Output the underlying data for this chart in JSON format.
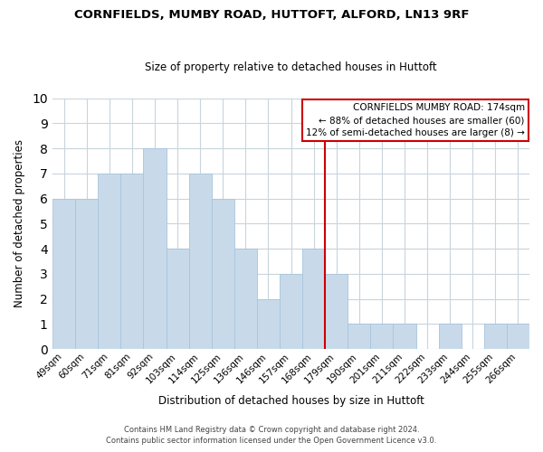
{
  "title": "CORNFIELDS, MUMBY ROAD, HUTTOFT, ALFORD, LN13 9RF",
  "subtitle": "Size of property relative to detached houses in Huttoft",
  "xlabel": "Distribution of detached houses by size in Huttoft",
  "ylabel": "Number of detached properties",
  "bar_labels": [
    "49sqm",
    "60sqm",
    "71sqm",
    "81sqm",
    "92sqm",
    "103sqm",
    "114sqm",
    "125sqm",
    "136sqm",
    "146sqm",
    "157sqm",
    "168sqm",
    "179sqm",
    "190sqm",
    "201sqm",
    "211sqm",
    "222sqm",
    "233sqm",
    "244sqm",
    "255sqm",
    "266sqm"
  ],
  "bar_values": [
    6,
    6,
    7,
    7,
    8,
    4,
    7,
    6,
    4,
    2,
    3,
    4,
    3,
    1,
    1,
    1,
    0,
    1,
    0,
    1,
    1
  ],
  "bar_color": "#c8daea",
  "bar_edge_color": "#a8c4dc",
  "vline_color": "#cc0000",
  "annotation_title": "CORNFIELDS MUMBY ROAD: 174sqm",
  "annotation_line1": "← 88% of detached houses are smaller (60)",
  "annotation_line2": "12% of semi-detached houses are larger (8) →",
  "annotation_box_color": "#ffffff",
  "annotation_box_edge": "#cc0000",
  "ylim": [
    0,
    10
  ],
  "yticks": [
    0,
    1,
    2,
    3,
    4,
    5,
    6,
    7,
    8,
    9,
    10
  ],
  "footer1": "Contains HM Land Registry data © Crown copyright and database right 2024.",
  "footer2": "Contains public sector information licensed under the Open Government Licence v3.0.",
  "bg_color": "#ffffff",
  "grid_color": "#c8d4dc"
}
